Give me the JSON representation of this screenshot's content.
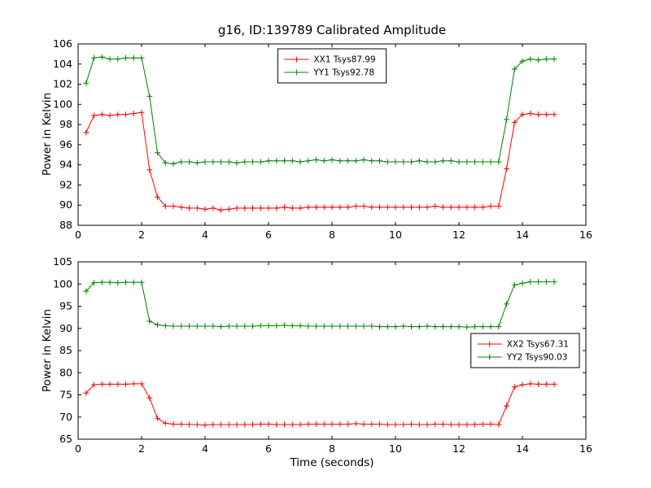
{
  "title": "g16, ID:139789 Calibrated Amplitude",
  "xlabel": "Time (seconds)",
  "colors": {
    "xx_series": "#ff0000",
    "yy_series": "#008000",
    "axis": "#000000",
    "background": "#ffffff"
  },
  "chart_data": [
    {
      "type": "line",
      "title": "g16, ID:139789 Calibrated Amplitude",
      "xlabel": "",
      "ylabel": "Power in Kelvin",
      "xlim": [
        0,
        16
      ],
      "ylim": [
        88,
        106
      ],
      "xticks": [
        0,
        2,
        4,
        6,
        8,
        10,
        12,
        14,
        16
      ],
      "yticks": [
        88,
        90,
        92,
        94,
        96,
        98,
        100,
        102,
        104,
        106
      ],
      "grid": false,
      "legend_loc": "upper center",
      "x": [
        0.25,
        0.5,
        0.75,
        1,
        1.25,
        1.5,
        1.75,
        2,
        2.25,
        2.5,
        2.75,
        3,
        3.25,
        3.5,
        3.75,
        4,
        4.25,
        4.5,
        4.75,
        5,
        5.25,
        5.5,
        5.75,
        6,
        6.25,
        6.5,
        6.75,
        7,
        7.25,
        7.5,
        7.75,
        8,
        8.25,
        8.5,
        8.75,
        9,
        9.25,
        9.5,
        9.75,
        10,
        10.25,
        10.5,
        10.75,
        11,
        11.25,
        11.5,
        11.75,
        12,
        12.25,
        12.5,
        12.75,
        13,
        13.25,
        13.5,
        13.75,
        14,
        14.25,
        14.5,
        14.75,
        15
      ],
      "series": [
        {
          "name": "XX1 Tsys87.99",
          "color": "#ff0000",
          "marker": "+",
          "values": [
            97.2,
            98.9,
            99.0,
            98.9,
            99.0,
            99.0,
            99.1,
            99.2,
            93.5,
            90.8,
            89.9,
            89.9,
            89.8,
            89.7,
            89.7,
            89.6,
            89.7,
            89.5,
            89.6,
            89.7,
            89.7,
            89.7,
            89.7,
            89.7,
            89.7,
            89.8,
            89.7,
            89.7,
            89.8,
            89.8,
            89.8,
            89.8,
            89.8,
            89.8,
            89.9,
            89.9,
            89.8,
            89.8,
            89.8,
            89.8,
            89.8,
            89.8,
            89.8,
            89.8,
            89.9,
            89.8,
            89.8,
            89.8,
            89.8,
            89.8,
            89.8,
            89.9,
            89.9,
            93.6,
            98.2,
            99.0,
            99.1,
            99.0,
            99.0,
            99.0
          ]
        },
        {
          "name": "YY1 Tsys92.78",
          "color": "#008000",
          "marker": "+",
          "values": [
            102.1,
            104.6,
            104.7,
            104.5,
            104.5,
            104.6,
            104.6,
            104.6,
            100.8,
            95.2,
            94.2,
            94.1,
            94.3,
            94.3,
            94.2,
            94.3,
            94.3,
            94.3,
            94.3,
            94.2,
            94.3,
            94.3,
            94.3,
            94.4,
            94.4,
            94.4,
            94.4,
            94.3,
            94.4,
            94.5,
            94.4,
            94.5,
            94.4,
            94.4,
            94.4,
            94.5,
            94.4,
            94.4,
            94.3,
            94.3,
            94.3,
            94.3,
            94.4,
            94.3,
            94.3,
            94.4,
            94.4,
            94.3,
            94.3,
            94.3,
            94.3,
            94.3,
            94.3,
            98.5,
            103.5,
            104.3,
            104.5,
            104.4,
            104.5,
            104.5
          ]
        }
      ]
    },
    {
      "type": "line",
      "title": "",
      "xlabel": "Time (seconds)",
      "ylabel": "Power in Kelvin",
      "xlim": [
        0,
        16
      ],
      "ylim": [
        65,
        105
      ],
      "xticks": [
        0,
        2,
        4,
        6,
        8,
        10,
        12,
        14,
        16
      ],
      "yticks": [
        65,
        70,
        75,
        80,
        85,
        90,
        95,
        100,
        105
      ],
      "grid": false,
      "legend_loc": "center right",
      "x": [
        0.25,
        0.5,
        0.75,
        1,
        1.25,
        1.5,
        1.75,
        2,
        2.25,
        2.5,
        2.75,
        3,
        3.25,
        3.5,
        3.75,
        4,
        4.25,
        4.5,
        4.75,
        5,
        5.25,
        5.5,
        5.75,
        6,
        6.25,
        6.5,
        6.75,
        7,
        7.25,
        7.5,
        7.75,
        8,
        8.25,
        8.5,
        8.75,
        9,
        9.25,
        9.5,
        9.75,
        10,
        10.25,
        10.5,
        10.75,
        11,
        11.25,
        11.5,
        11.75,
        12,
        12.25,
        12.5,
        12.75,
        13,
        13.25,
        13.5,
        13.75,
        14,
        14.25,
        14.5,
        14.75,
        15
      ],
      "series": [
        {
          "name": "XX2 Tsys67.31",
          "color": "#ff0000",
          "marker": "+",
          "values": [
            75.4,
            77.3,
            77.4,
            77.4,
            77.4,
            77.4,
            77.5,
            77.5,
            74.3,
            69.7,
            68.6,
            68.4,
            68.4,
            68.3,
            68.3,
            68.2,
            68.3,
            68.3,
            68.3,
            68.3,
            68.3,
            68.3,
            68.4,
            68.4,
            68.3,
            68.3,
            68.3,
            68.3,
            68.4,
            68.4,
            68.4,
            68.4,
            68.4,
            68.4,
            68.5,
            68.4,
            68.4,
            68.4,
            68.3,
            68.3,
            68.3,
            68.4,
            68.3,
            68.3,
            68.4,
            68.4,
            68.3,
            68.3,
            68.3,
            68.3,
            68.4,
            68.4,
            68.3,
            72.5,
            76.8,
            77.3,
            77.5,
            77.4,
            77.4,
            77.4
          ]
        },
        {
          "name": "YY2 Tsys90.03",
          "color": "#008000",
          "marker": "+",
          "values": [
            98.4,
            100.3,
            100.4,
            100.4,
            100.3,
            100.4,
            100.4,
            100.4,
            91.6,
            90.8,
            90.6,
            90.5,
            90.5,
            90.5,
            90.5,
            90.5,
            90.5,
            90.4,
            90.5,
            90.5,
            90.5,
            90.5,
            90.6,
            90.6,
            90.6,
            90.7,
            90.6,
            90.6,
            90.5,
            90.5,
            90.5,
            90.5,
            90.5,
            90.5,
            90.5,
            90.5,
            90.5,
            90.4,
            90.4,
            90.4,
            90.5,
            90.4,
            90.4,
            90.5,
            90.4,
            90.4,
            90.4,
            90.4,
            90.3,
            90.4,
            90.4,
            90.4,
            90.4,
            95.5,
            99.8,
            100.2,
            100.5,
            100.5,
            100.5,
            100.5
          ]
        }
      ]
    }
  ]
}
